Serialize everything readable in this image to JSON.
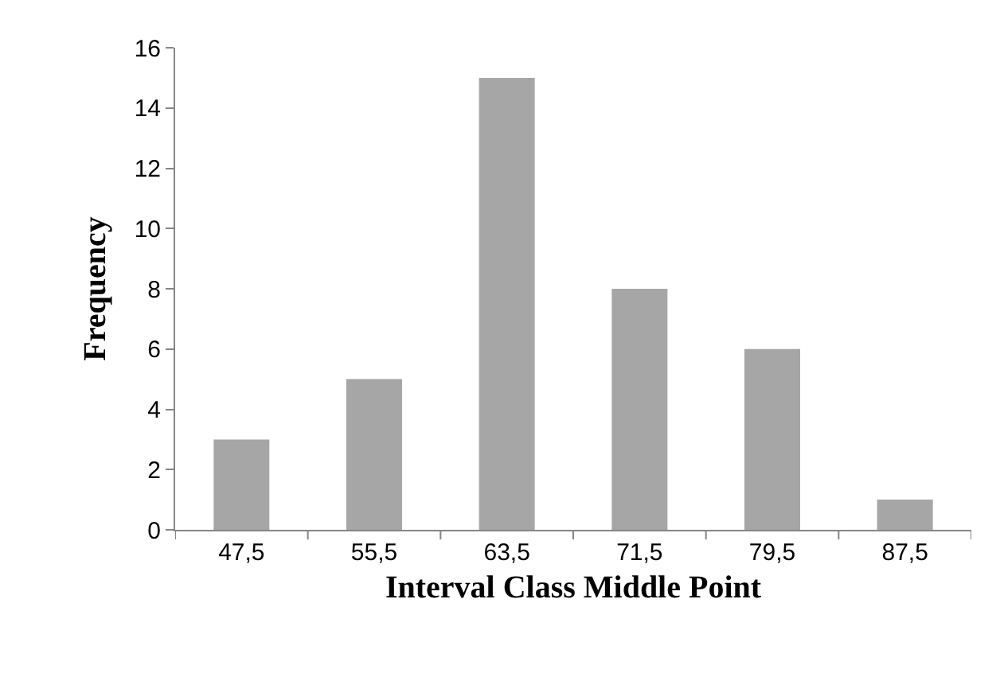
{
  "chart_data": {
    "type": "bar",
    "xlabel": "Interval Class Middle Point",
    "ylabel": "Frequency",
    "categories": [
      "47,5",
      "55,5",
      "63,5",
      "71,5",
      "79,5",
      "87,5"
    ],
    "values": [
      3,
      5,
      15,
      8,
      6,
      1
    ],
    "color": "#a6a6a6",
    "ylim": [
      0,
      16
    ],
    "yticks": [
      0,
      2,
      4,
      6,
      8,
      10,
      12,
      14,
      16
    ]
  }
}
